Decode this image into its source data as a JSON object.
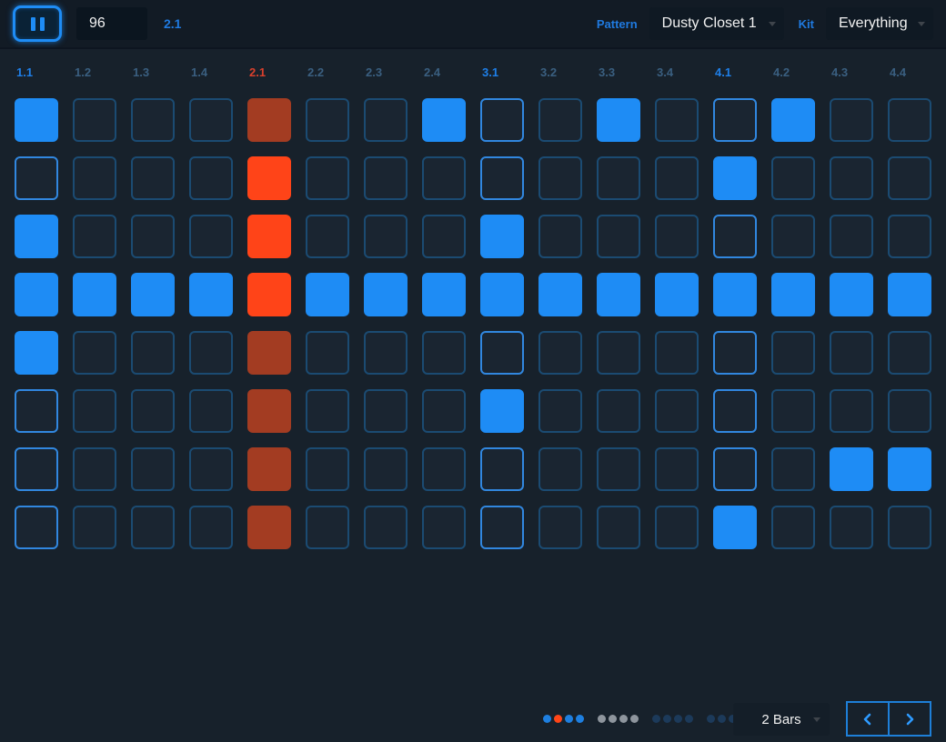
{
  "colors": {
    "accent_blue": "#1E8CF5",
    "step_on": "#1E8CF5",
    "current_on": "#FF4418",
    "current_off": "#A33C22",
    "current_header": "#D9402C",
    "dot_on": "#1E7FE0",
    "dot_current": "#FF4517",
    "dot_off": "#8E959D",
    "dot_dim": "#1C3A5A"
  },
  "transport": {
    "pause_icon": "pause",
    "tempo_value": "96",
    "position_display": "2.1"
  },
  "pattern_select": {
    "label": "Pattern",
    "value": "Dusty Closet 1"
  },
  "kit_select": {
    "label": "Kit",
    "value": "Everything"
  },
  "sequencer": {
    "column_headers": [
      "1.1",
      "1.2",
      "1.3",
      "1.4",
      "2.1",
      "2.2",
      "2.3",
      "2.4",
      "3.1",
      "3.2",
      "3.3",
      "3.4",
      "4.1",
      "4.2",
      "4.3",
      "4.4"
    ],
    "current_column_index": 4,
    "beat_start_columns": [
      0,
      4,
      8,
      12
    ],
    "steps": [
      [
        1,
        0,
        0,
        0,
        0,
        0,
        0,
        1,
        0,
        0,
        1,
        0,
        0,
        1,
        0,
        0
      ],
      [
        0,
        0,
        0,
        0,
        1,
        0,
        0,
        0,
        0,
        0,
        0,
        0,
        1,
        0,
        0,
        0
      ],
      [
        1,
        0,
        0,
        0,
        1,
        0,
        0,
        0,
        1,
        0,
        0,
        0,
        0,
        0,
        0,
        0
      ],
      [
        1,
        1,
        1,
        1,
        1,
        1,
        1,
        1,
        1,
        1,
        1,
        1,
        1,
        1,
        1,
        1
      ],
      [
        1,
        0,
        0,
        0,
        0,
        0,
        0,
        0,
        0,
        0,
        0,
        0,
        0,
        0,
        0,
        0
      ],
      [
        0,
        0,
        0,
        0,
        0,
        0,
        0,
        0,
        1,
        0,
        0,
        0,
        0,
        0,
        0,
        0
      ],
      [
        0,
        0,
        0,
        0,
        0,
        0,
        0,
        0,
        0,
        0,
        0,
        0,
        0,
        0,
        1,
        1
      ],
      [
        0,
        0,
        0,
        0,
        0,
        0,
        0,
        0,
        0,
        0,
        0,
        0,
        1,
        0,
        0,
        0
      ]
    ]
  },
  "footer": {
    "page_dots": [
      "on",
      "current",
      "on",
      "on",
      "off",
      "off",
      "off",
      "off",
      "dim",
      "dim",
      "dim",
      "dim",
      "dim",
      "dim",
      "dim",
      "dim"
    ],
    "bars_select_value": "2 Bars",
    "prev_icon": "chevron-left",
    "next_icon": "chevron-right"
  }
}
